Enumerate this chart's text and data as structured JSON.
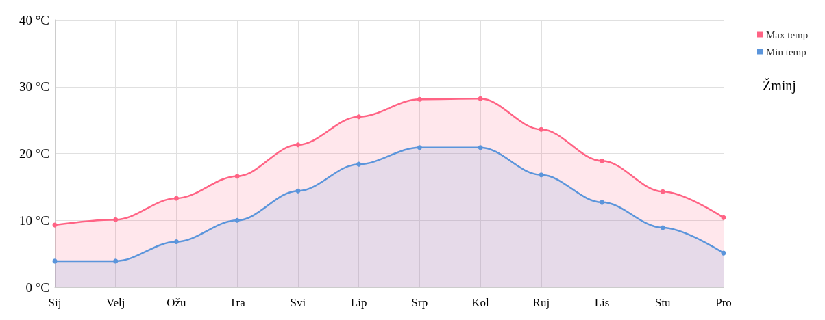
{
  "chart_data": {
    "type": "area",
    "title": "Žminj",
    "categories": [
      "Sij",
      "Velj",
      "Ožu",
      "Tra",
      "Svi",
      "Lip",
      "Srp",
      "Kol",
      "Ruj",
      "Lis",
      "Stu",
      "Pro"
    ],
    "series": [
      {
        "name": "Max temp",
        "color": "#ff6384",
        "values": [
          9.3,
          10.1,
          13.3,
          16.6,
          21.3,
          25.5,
          28.1,
          28.2,
          23.6,
          18.9,
          14.3,
          10.4
        ]
      },
      {
        "name": "Min temp",
        "color": "#5b95db",
        "values": [
          3.9,
          3.9,
          6.8,
          10.0,
          14.4,
          18.4,
          20.9,
          20.9,
          16.8,
          12.7,
          8.9,
          5.1
        ]
      }
    ],
    "ylim": [
      0,
      40
    ],
    "yticks": [
      {
        "value": 0,
        "label": "0 °C"
      },
      {
        "value": 10,
        "label": "10 °C"
      },
      {
        "value": 20,
        "label": "20 °C"
      },
      {
        "value": 30,
        "label": "30 °C"
      },
      {
        "value": 40,
        "label": "40 °C"
      }
    ],
    "grid": true,
    "legend": "top right",
    "marker": "circle",
    "line_style": "solid"
  }
}
